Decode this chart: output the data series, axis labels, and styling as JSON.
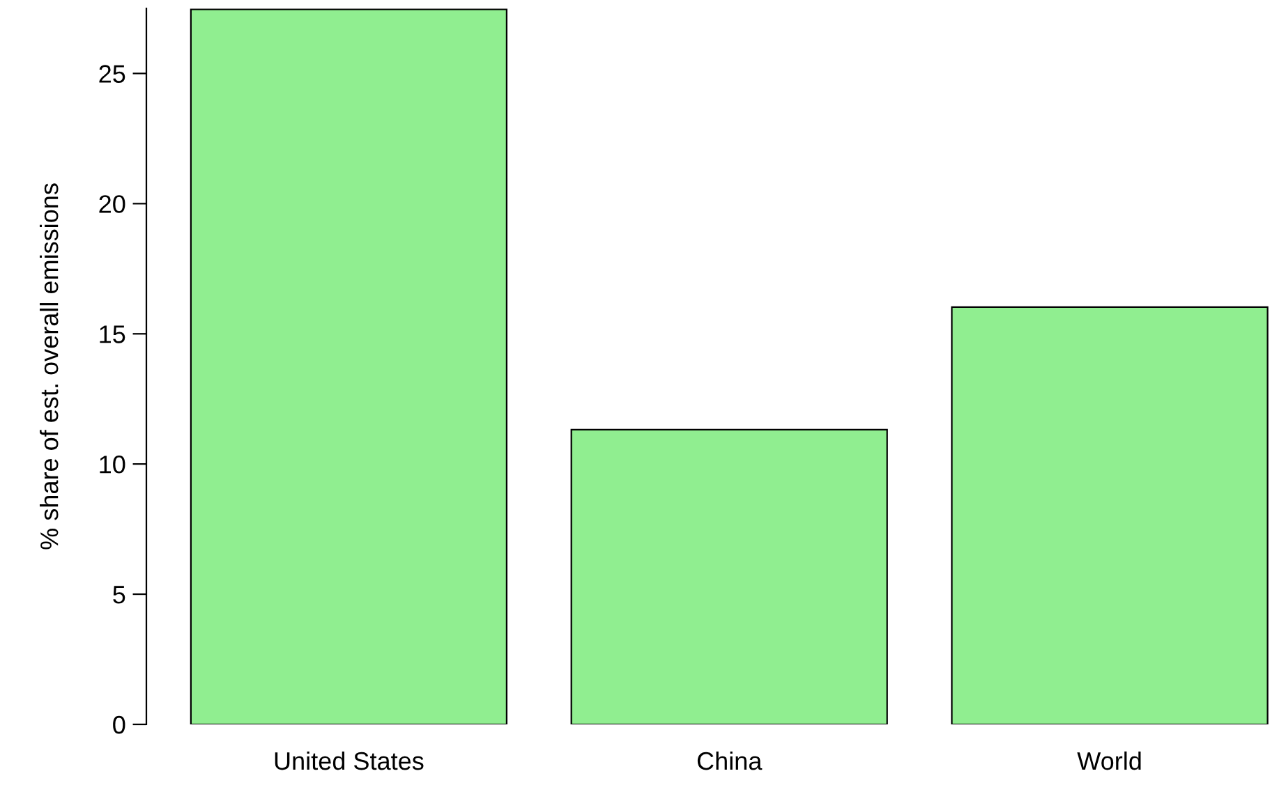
{
  "chart_data": {
    "type": "bar",
    "ylabel": "% share of est. overall emissions",
    "categories": [
      "United States",
      "China",
      "World"
    ],
    "values": [
      27.46,
      11.32,
      16.03
    ],
    "color": "#90ee90",
    "ylim": [
      0,
      27.5
    ],
    "yticks": [
      0,
      5,
      10,
      15,
      20,
      25
    ],
    "grid": false
  }
}
